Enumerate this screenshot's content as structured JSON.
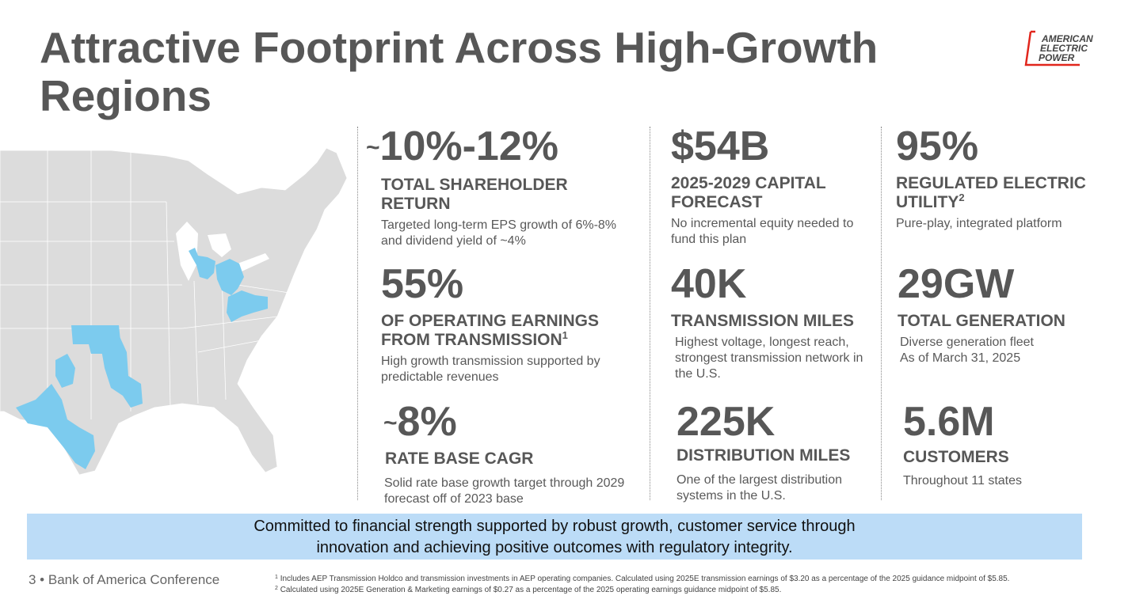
{
  "title": "Attractive Footprint Across High-Growth Regions",
  "logo": {
    "line1": "AMERICAN",
    "line2": "ELECTRIC",
    "line3": "POWER"
  },
  "colors": {
    "map_base": "#dcdcdc",
    "service_area": "#7ccbee",
    "banner": "#bcdcf7",
    "logo_red": "#e1261c"
  },
  "stats": [
    {
      "prefix": "~",
      "value": "10%-12%",
      "label": "TOTAL SHAREHOLDER RETURN",
      "sup": "",
      "desc": "Targeted long-term EPS growth of 6%-8% and dividend yield of ~4%"
    },
    {
      "prefix": "",
      "value": "$54B",
      "label": "2025-2029 CAPITAL FORECAST",
      "sup": "",
      "desc": "No incremental equity needed to fund this plan"
    },
    {
      "prefix": "",
      "value": "95%",
      "label": "REGULATED ELECTRIC UTILITY",
      "sup": "2",
      "desc": "Pure-play, integrated platform"
    },
    {
      "prefix": "",
      "value": "55%",
      "label": "OF OPERATING EARNINGS FROM TRANSMISSION",
      "sup": "1",
      "desc": "High growth transmission supported by predictable revenues"
    },
    {
      "prefix": "",
      "value": "40K",
      "label": "TRANSMISSION MILES",
      "sup": "",
      "desc": "Highest voltage, longest reach, strongest transmission network in the U.S."
    },
    {
      "prefix": "",
      "value": "29GW",
      "label": "TOTAL GENERATION",
      "sup": "",
      "desc": "Diverse generation fleet",
      "desc2": "As of March 31, 2025"
    },
    {
      "prefix": "~",
      "value": "8%",
      "label": "RATE BASE CAGR",
      "sup": "",
      "desc": "Solid rate base growth target through 2029 forecast off of 2023 base"
    },
    {
      "prefix": "",
      "value": "225K",
      "label": "DISTRIBUTION MILES",
      "sup": "",
      "desc": "One of the largest distribution systems in the U.S."
    },
    {
      "prefix": "",
      "value": "5.6M",
      "label": "CUSTOMERS",
      "sup": "",
      "desc": "Throughout 11 states"
    }
  ],
  "banner": {
    "line1": "Committed to financial strength supported by robust growth, customer service through",
    "line2": "innovation and achieving positive outcomes with regulatory integrity."
  },
  "footer": {
    "page_label": "3 • Bank of America Conference",
    "note1_marker": "1",
    "note1": "Includes AEP Transmission Holdco and transmission investments in AEP operating companies.  Calculated using 2025E transmission earnings of $3.20 as a percentage of the 2025 guidance midpoint of $5.85.",
    "note2_marker": "2",
    "note2": "Calculated using 2025E Generation & Marketing earnings of $0.27 as a percentage of the 2025 operating earnings guidance midpoint of $5.85."
  }
}
